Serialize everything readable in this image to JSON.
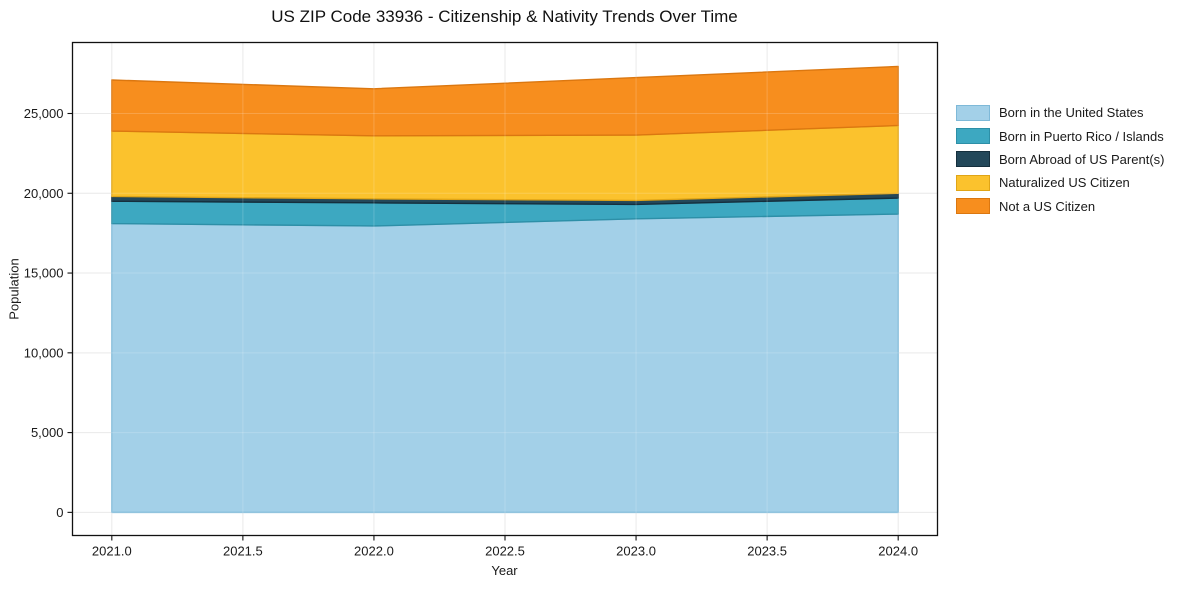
{
  "chart_data": {
    "type": "area",
    "stacked": true,
    "title": "US ZIP Code 33936 - Citizenship & Nativity Trends Over Time",
    "xlabel": "Year",
    "ylabel": "Population",
    "x": [
      2021,
      2022,
      2023,
      2024
    ],
    "series": [
      {
        "name": "Born in the United States",
        "color": "#A3D0E8",
        "edge": "#7EB9D8",
        "values": [
          18100,
          17950,
          18400,
          18700
        ]
      },
      {
        "name": "Born in Puerto Rico / Islands",
        "color": "#3DA8C1",
        "edge": "#2D8FA7",
        "values": [
          1400,
          1450,
          900,
          1000
        ]
      },
      {
        "name": "Born Abroad of US Parent(s)",
        "color": "#23485A",
        "edge": "#152F3D",
        "values": [
          300,
          250,
          250,
          300
        ]
      },
      {
        "name": "Naturalized US Citizen",
        "color": "#FBC22D",
        "edge": "#E0A517",
        "values": [
          4100,
          3950,
          4100,
          4250
        ]
      },
      {
        "name": "Not a US Citizen",
        "color": "#F78E1E",
        "edge": "#DB7710",
        "values": [
          3200,
          2950,
          3600,
          3700
        ]
      }
    ],
    "totals": [
      27100,
      26550,
      27250,
      27950
    ],
    "xlim": [
      2020.85,
      2024.15
    ],
    "ylim": [
      -1450,
      29450
    ],
    "xticks": [
      2021.0,
      2021.5,
      2022.0,
      2022.5,
      2023.0,
      2023.5,
      2024.0
    ],
    "xtick_labels": [
      "2021.0",
      "2021.5",
      "2022.0",
      "2022.5",
      "2023.0",
      "2023.5",
      "2024.0"
    ],
    "yticks": [
      0,
      5000,
      10000,
      15000,
      20000,
      25000
    ],
    "ytick_labels": [
      "0",
      "5,000",
      "10,000",
      "15,000",
      "20,000",
      "25,000"
    ],
    "grid": true,
    "legend_position": "right-outside"
  }
}
